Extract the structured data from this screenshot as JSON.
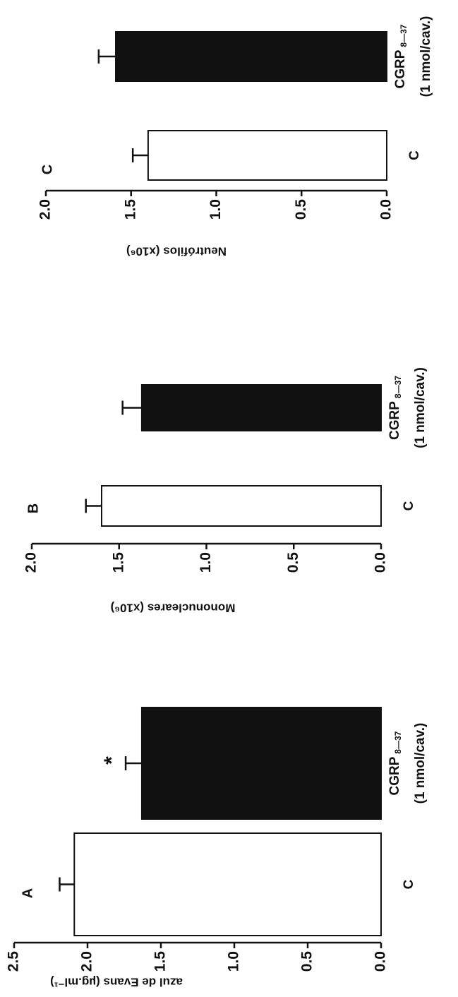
{
  "chart_data": [
    {
      "type": "bar",
      "panel_label": "A",
      "y_label": "azul de Evans (µg.ml⁻¹)",
      "categories": [
        {
          "label": "C"
        },
        {
          "label": "CGRP",
          "subscript": "8—37",
          "note": "(1 nmol/cav.)"
        }
      ],
      "values": [
        2.09,
        1.63
      ],
      "errors": [
        0.1,
        0.11
      ],
      "colors": [
        "#ffffff",
        "#111111"
      ],
      "annotations": [
        {
          "text": "*",
          "category": 1
        }
      ],
      "ylim": [
        0,
        2.5
      ],
      "yticks": [
        {
          "value": 0,
          "label": "0.0"
        },
        0.5,
        {
          "value": 1,
          "label": "1.0"
        },
        1.5,
        {
          "value": 2,
          "label": "2.0"
        },
        2.5
      ]
    },
    {
      "type": "bar",
      "panel_label": "B",
      "y_label": "Mononucleares (x10⁶)",
      "categories": [
        {
          "label": "C"
        },
        {
          "label": "CGRP",
          "subscript": "8—37",
          "note": "(1 nmol/cav.)"
        }
      ],
      "values": [
        1.6,
        1.37
      ],
      "errors": [
        0.09,
        0.11
      ],
      "colors": [
        "#ffffff",
        "#111111"
      ],
      "ylim": [
        0,
        2
      ],
      "yticks": [
        {
          "value": 0,
          "label": "0.0"
        },
        0.5,
        {
          "value": 1,
          "label": "1.0"
        },
        1.5,
        {
          "value": 2,
          "label": "2.0"
        }
      ]
    },
    {
      "type": "bar",
      "panel_label": "C",
      "y_label": "Neutrófilos (x10⁶)",
      "categories": [
        {
          "label": "C"
        },
        {
          "label": "CGRP",
          "subscript": "8—37",
          "note": "(1 nmol/cav.)"
        }
      ],
      "values": [
        1.4,
        1.59
      ],
      "errors": [
        0.09,
        0.1
      ],
      "colors": [
        "#ffffff",
        "#111111"
      ],
      "ylim": [
        0,
        2
      ],
      "yticks": [
        {
          "value": 0,
          "label": "0.0"
        },
        0.5,
        {
          "value": 1,
          "label": "1.0"
        },
        1.5,
        {
          "value": 2,
          "label": "2.0"
        }
      ]
    }
  ]
}
